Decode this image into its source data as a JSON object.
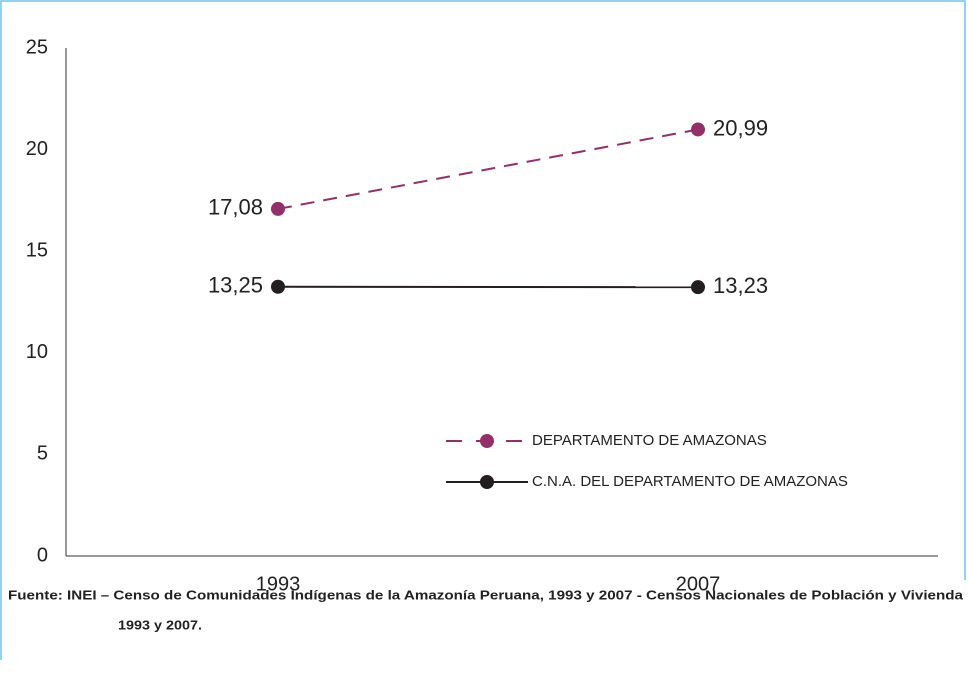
{
  "chart_data": {
    "type": "line",
    "categories": [
      "1993",
      "2007"
    ],
    "series": [
      {
        "name": "DEPARTAMENTO DE AMAZONAS",
        "color": "#93306a",
        "dash": true,
        "values": [
          17.08,
          20.99
        ],
        "value_labels": [
          "17,08",
          "20,99"
        ]
      },
      {
        "name": "C.N.A. DEL DEPARTAMENTO DE AMAZONAS",
        "color": "#231f20",
        "dash": false,
        "values": [
          13.25,
          13.23
        ],
        "value_labels": [
          "13,25",
          "13,23"
        ]
      }
    ],
    "ylim": [
      0,
      25
    ],
    "yticks": [
      0,
      5,
      10,
      15,
      20,
      25
    ],
    "grid": false,
    "notes": [
      "Fuente: INEI –   Censo de Comunidades Indígenas de la Amazonía Peruana, 1993 y 2007 - Censos Nacionales de Población y Vivienda",
      "1993 y 2007."
    ]
  }
}
